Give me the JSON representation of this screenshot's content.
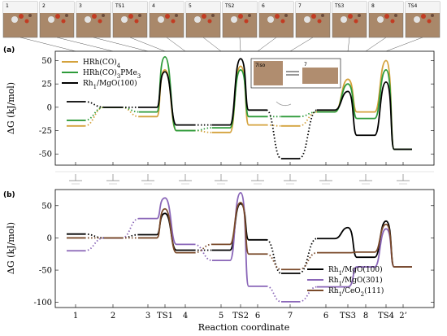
{
  "thumbnails": [
    "1",
    "2",
    "3",
    "TS1",
    "4",
    "5",
    "TS2",
    "6",
    "7",
    "TS3",
    "8",
    "TS4"
  ],
  "panel_labels": [
    "(a)",
    "(b)"
  ],
  "inset": {
    "left_label": "7iso",
    "right_label": "7"
  },
  "chart_data": [
    {
      "type": "line",
      "panel": "(a)",
      "ylabel": "ΔG (kJ/mol)",
      "ylim": [
        -62,
        60
      ],
      "yticks": [
        -50,
        -25,
        0,
        25,
        50
      ],
      "legend_position": "top-left",
      "series": [
        {
          "name": "HRh(CO)4",
          "label_base": "HRh(CO)",
          "label_sub": "4",
          "color": "#d4a23c",
          "points": [
            [
              1,
              -20
            ],
            [
              2,
              0
            ],
            [
              3,
              -10
            ],
            [
              3.55,
              40
            ],
            [
              4,
              -25
            ],
            [
              5,
              -27
            ],
            [
              5.75,
              44
            ],
            [
              6,
              -19
            ],
            [
              7,
              -20
            ],
            [
              8,
              -5
            ],
            [
              8.6,
              30
            ],
            [
              9,
              -5
            ],
            [
              9.6,
              50
            ],
            [
              10,
              -45
            ]
          ]
        },
        {
          "name": "HRh(CO)3PMe3",
          "label_base": "HRh(CO)",
          "label_sub": "3",
          "label_tail": "PMe",
          "label_sub2": "3",
          "color": "#2e9b3a",
          "points": [
            [
              1,
              -14
            ],
            [
              2,
              0
            ],
            [
              3,
              -5
            ],
            [
              3.55,
              54
            ],
            [
              4,
              -25
            ],
            [
              5,
              -22
            ],
            [
              5.75,
              40
            ],
            [
              6,
              -10
            ],
            [
              7,
              -10
            ],
            [
              8,
              -5
            ],
            [
              8.6,
              25
            ],
            [
              9,
              -12
            ],
            [
              9.6,
              40
            ],
            [
              10,
              -45
            ]
          ]
        },
        {
          "name": "Rh1/MgO(100)",
          "label_base": "Rh",
          "label_sub": "1",
          "label_tail": "/MgO(100)",
          "color": "#000000",
          "points": [
            [
              1,
              6
            ],
            [
              2,
              0
            ],
            [
              3,
              0
            ],
            [
              3.55,
              38
            ],
            [
              4,
              -19
            ],
            [
              5,
              -19
            ],
            [
              5.75,
              52
            ],
            [
              6,
              -3
            ],
            [
              7,
              -55
            ],
            [
              8,
              -3
            ],
            [
              8.6,
              17
            ],
            [
              9,
              -30
            ],
            [
              9.6,
              27
            ],
            [
              10,
              -45
            ]
          ]
        }
      ]
    },
    {
      "type": "line",
      "panel": "(b)",
      "xlabel": "Reaction coordinate",
      "ylabel": "ΔG (kJ/mol)",
      "ylim": [
        -108,
        75
      ],
      "yticks": [
        -100,
        -50,
        0,
        50
      ],
      "legend_position": "bottom-right",
      "xtick_labels": [
        "1",
        "2",
        "3",
        "TS1",
        "4",
        "5",
        "TS2",
        "6",
        "7",
        "6",
        "TS3",
        "8",
        "TS4",
        "2’"
      ],
      "series": [
        {
          "name": "Rh1/MgO(100)",
          "label_base": "Rh",
          "label_sub": "1",
          "label_tail": "/MgO(100)",
          "color": "#000000",
          "points": [
            [
              1,
              6
            ],
            [
              2,
              0
            ],
            [
              3,
              5
            ],
            [
              3.55,
              38
            ],
            [
              4,
              -19
            ],
            [
              5,
              -19
            ],
            [
              5.75,
              53
            ],
            [
              6,
              -3
            ],
            [
              7,
              -55
            ],
            [
              8,
              -1
            ],
            [
              8.6,
              16
            ],
            [
              9,
              -30
            ],
            [
              9.6,
              26
            ],
            [
              10,
              -45
            ]
          ]
        },
        {
          "name": "Rh1/MgO(301)",
          "label_base": "Rh",
          "label_sub": "1",
          "label_tail": "/MgO(301)",
          "color": "#8a66b8",
          "points": [
            [
              1,
              -20
            ],
            [
              2,
              0
            ],
            [
              3,
              30
            ],
            [
              3.55,
              62
            ],
            [
              4,
              -10
            ],
            [
              5,
              -35
            ],
            [
              5.75,
              70
            ],
            [
              6,
              -75
            ],
            [
              7,
              -99
            ],
            [
              8,
              -76
            ],
            [
              8.6,
              -76
            ],
            [
              9,
              -45
            ],
            [
              9.6,
              14
            ],
            [
              10,
              -45
            ]
          ]
        },
        {
          "name": "Rh1/CeO2(111)",
          "label_base": "Rh",
          "label_sub": "1",
          "label_tail": "/CeO",
          "label_sub2": "2",
          "label_tail2": "(111)",
          "color": "#7a4a2a",
          "points": [
            [
              1,
              0
            ],
            [
              2,
              0
            ],
            [
              3,
              0
            ],
            [
              3.55,
              45
            ],
            [
              4,
              -23
            ],
            [
              5,
              -10
            ],
            [
              5.75,
              55
            ],
            [
              6,
              -25
            ],
            [
              7,
              -49
            ],
            [
              8,
              -23
            ],
            [
              8.6,
              -23
            ],
            [
              9,
              -22
            ],
            [
              9.6,
              21
            ],
            [
              10,
              -45
            ]
          ]
        }
      ]
    }
  ]
}
